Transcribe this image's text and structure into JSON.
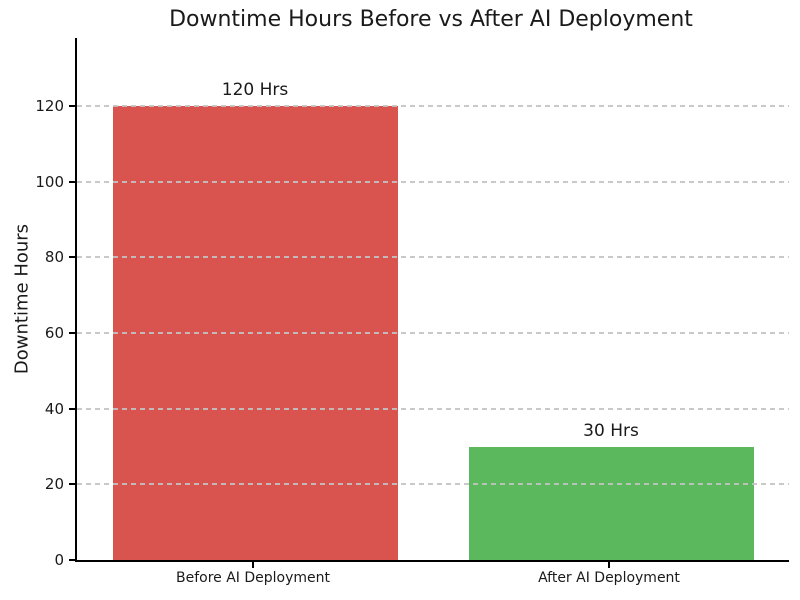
{
  "chart_data": {
    "type": "bar",
    "title": "Downtime Hours Before vs After AI Deployment",
    "xlabel": "",
    "ylabel": "Downtime Hours",
    "categories": [
      "Before AI Deployment",
      "After AI Deployment"
    ],
    "values": [
      120,
      30
    ],
    "bar_labels": [
      "120 Hrs",
      "30 Hrs"
    ],
    "bar_colors": [
      "#d9534f",
      "#5cb85c"
    ],
    "yticks": [
      0,
      20,
      40,
      60,
      80,
      100,
      120
    ],
    "ylim": [
      0,
      138
    ],
    "grid": "horizontal dashed gridlines drawn above bars",
    "gridline_color": "#c3c3c3",
    "legend": "none",
    "background_color": "#ffffff",
    "text_color": "#1a1a1a",
    "spines": [
      "left",
      "bottom"
    ]
  }
}
